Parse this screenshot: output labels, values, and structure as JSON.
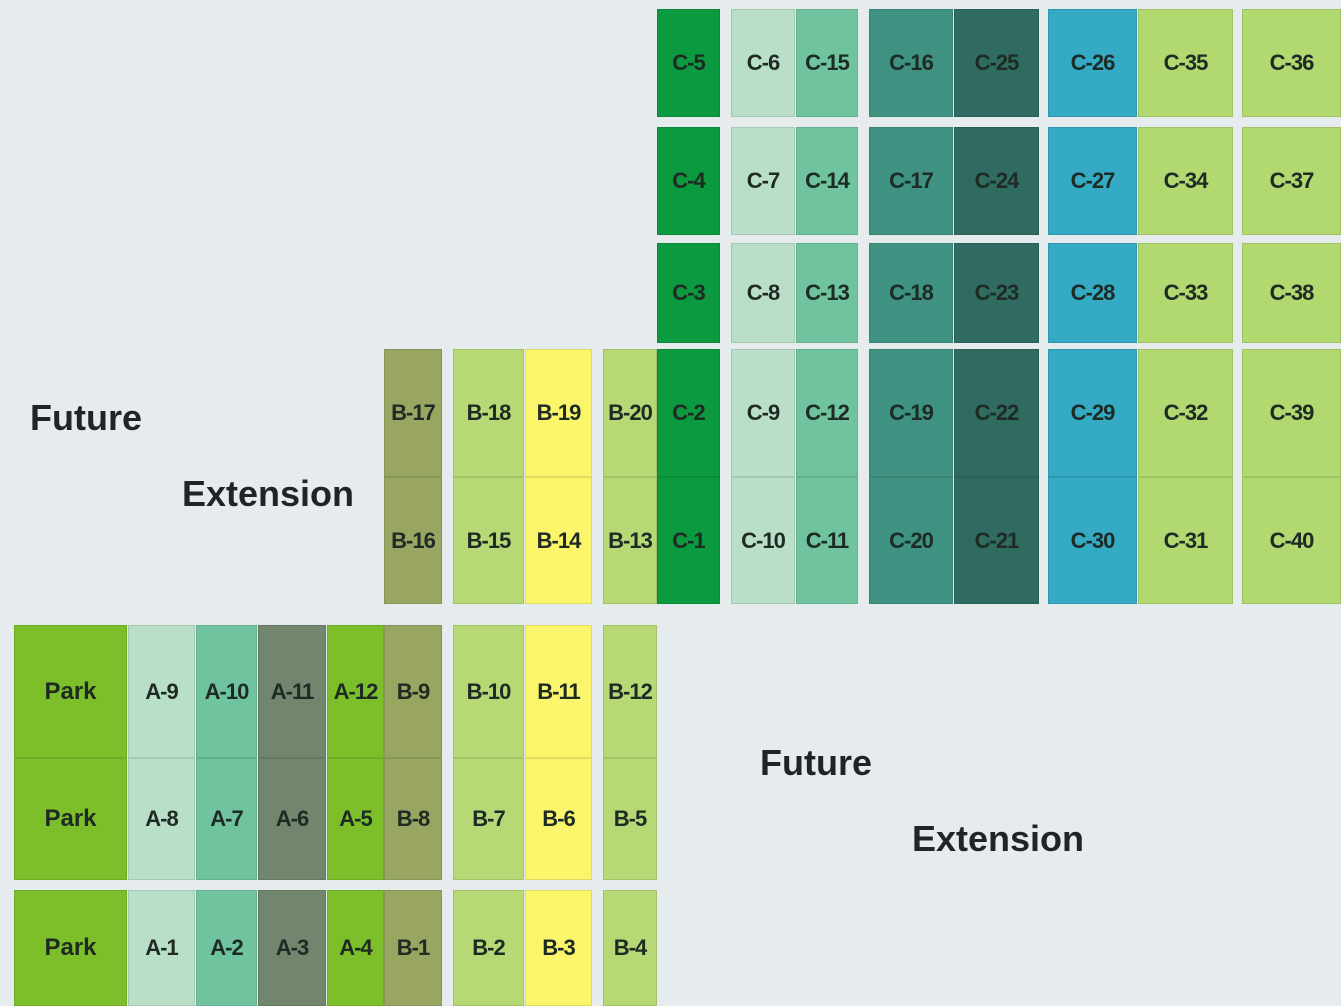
{
  "colors": {
    "background": "#e6ebee",
    "park": "#7cbf2a",
    "light_mint": "#b9dfc8",
    "mint": "#6fc39f",
    "grey_green": "#72856d",
    "bright_green": "#7cbf2a",
    "olive": "#98a662",
    "pale_lime": "#b6d975",
    "yellow": "#fbf56c",
    "deep_green": "#0c9a40",
    "teal": "#3f9282",
    "dark_teal": "#2f6b60",
    "cyan": "#35aac4",
    "lime": "#b2d870"
  },
  "labels": {
    "future_1": "Future",
    "extension_1": "Extension",
    "future_2": "Future",
    "extension_2": "Extension"
  },
  "plots": [
    {
      "label": "Park",
      "color": "park",
      "row": 6,
      "col": "park"
    },
    {
      "label": "Park",
      "color": "park",
      "row": 7,
      "col": "park"
    },
    {
      "label": "Park",
      "color": "park",
      "row": 8,
      "col": "park"
    },
    {
      "label": "A-9",
      "color": "light_mint",
      "row": 6,
      "col": "a1"
    },
    {
      "label": "A-8",
      "color": "light_mint",
      "row": 7,
      "col": "a1"
    },
    {
      "label": "A-1",
      "color": "light_mint",
      "row": 8,
      "col": "a1"
    },
    {
      "label": "A-10",
      "color": "mint",
      "row": 6,
      "col": "a2"
    },
    {
      "label": "A-7",
      "color": "mint",
      "row": 7,
      "col": "a2"
    },
    {
      "label": "A-2",
      "color": "mint",
      "row": 8,
      "col": "a2"
    },
    {
      "label": "A-11",
      "color": "grey_green",
      "row": 6,
      "col": "a3"
    },
    {
      "label": "A-6",
      "color": "grey_green",
      "row": 7,
      "col": "a3"
    },
    {
      "label": "A-3",
      "color": "grey_green",
      "row": 8,
      "col": "a3"
    },
    {
      "label": "A-12",
      "color": "bright_green",
      "row": 6,
      "col": "a4"
    },
    {
      "label": "A-5",
      "color": "bright_green",
      "row": 7,
      "col": "a4"
    },
    {
      "label": "A-4",
      "color": "bright_green",
      "row": 8,
      "col": "a4"
    },
    {
      "label": "B-17",
      "color": "olive",
      "row": 4,
      "col": "b1"
    },
    {
      "label": "B-16",
      "color": "olive",
      "row": 5,
      "col": "b1"
    },
    {
      "label": "B-9",
      "color": "olive",
      "row": 6,
      "col": "b1"
    },
    {
      "label": "B-8",
      "color": "olive",
      "row": 7,
      "col": "b1"
    },
    {
      "label": "B-1",
      "color": "olive",
      "row": 8,
      "col": "b1"
    },
    {
      "label": "B-18",
      "color": "pale_lime",
      "row": 4,
      "col": "b2"
    },
    {
      "label": "B-15",
      "color": "pale_lime",
      "row": 5,
      "col": "b2"
    },
    {
      "label": "B-10",
      "color": "pale_lime",
      "row": 6,
      "col": "b2"
    },
    {
      "label": "B-7",
      "color": "pale_lime",
      "row": 7,
      "col": "b2"
    },
    {
      "label": "B-2",
      "color": "pale_lime",
      "row": 8,
      "col": "b2"
    },
    {
      "label": "B-19",
      "color": "yellow",
      "row": 4,
      "col": "b3"
    },
    {
      "label": "B-14",
      "color": "yellow",
      "row": 5,
      "col": "b3"
    },
    {
      "label": "B-11",
      "color": "yellow",
      "row": 6,
      "col": "b3"
    },
    {
      "label": "B-6",
      "color": "yellow",
      "row": 7,
      "col": "b3"
    },
    {
      "label": "B-3",
      "color": "yellow",
      "row": 8,
      "col": "b3"
    },
    {
      "label": "B-20",
      "color": "pale_lime",
      "row": 4,
      "col": "b4"
    },
    {
      "label": "B-13",
      "color": "pale_lime",
      "row": 5,
      "col": "b4"
    },
    {
      "label": "B-12",
      "color": "pale_lime",
      "row": 6,
      "col": "b4"
    },
    {
      "label": "B-5",
      "color": "pale_lime",
      "row": 7,
      "col": "b4"
    },
    {
      "label": "B-4",
      "color": "pale_lime",
      "row": 8,
      "col": "b4"
    },
    {
      "label": "C-5",
      "color": "deep_green",
      "row": 1,
      "col": "c1"
    },
    {
      "label": "C-4",
      "color": "deep_green",
      "row": 2,
      "col": "c1"
    },
    {
      "label": "C-3",
      "color": "deep_green",
      "row": 3,
      "col": "c1"
    },
    {
      "label": "C-2",
      "color": "deep_green",
      "row": 4,
      "col": "c1"
    },
    {
      "label": "C-1",
      "color": "deep_green",
      "row": 5,
      "col": "c1"
    },
    {
      "label": "C-6",
      "color": "light_mint",
      "row": 1,
      "col": "c2"
    },
    {
      "label": "C-7",
      "color": "light_mint",
      "row": 2,
      "col": "c2"
    },
    {
      "label": "C-8",
      "color": "light_mint",
      "row": 3,
      "col": "c2"
    },
    {
      "label": "C-9",
      "color": "light_mint",
      "row": 4,
      "col": "c2"
    },
    {
      "label": "C-10",
      "color": "light_mint",
      "row": 5,
      "col": "c2"
    },
    {
      "label": "C-15",
      "color": "mint",
      "row": 1,
      "col": "c3"
    },
    {
      "label": "C-14",
      "color": "mint",
      "row": 2,
      "col": "c3"
    },
    {
      "label": "C-13",
      "color": "mint",
      "row": 3,
      "col": "c3"
    },
    {
      "label": "C-12",
      "color": "mint",
      "row": 4,
      "col": "c3"
    },
    {
      "label": "C-11",
      "color": "mint",
      "row": 5,
      "col": "c3"
    },
    {
      "label": "C-16",
      "color": "teal",
      "row": 1,
      "col": "c4"
    },
    {
      "label": "C-17",
      "color": "teal",
      "row": 2,
      "col": "c4"
    },
    {
      "label": "C-18",
      "color": "teal",
      "row": 3,
      "col": "c4"
    },
    {
      "label": "C-19",
      "color": "teal",
      "row": 4,
      "col": "c4"
    },
    {
      "label": "C-20",
      "color": "teal",
      "row": 5,
      "col": "c4"
    },
    {
      "label": "C-25",
      "color": "dark_teal",
      "row": 1,
      "col": "c5"
    },
    {
      "label": "C-24",
      "color": "dark_teal",
      "row": 2,
      "col": "c5"
    },
    {
      "label": "C-23",
      "color": "dark_teal",
      "row": 3,
      "col": "c5"
    },
    {
      "label": "C-22",
      "color": "dark_teal",
      "row": 4,
      "col": "c5"
    },
    {
      "label": "C-21",
      "color": "dark_teal",
      "row": 5,
      "col": "c5"
    },
    {
      "label": "C-26",
      "color": "cyan",
      "row": 1,
      "col": "c6"
    },
    {
      "label": "C-27",
      "color": "cyan",
      "row": 2,
      "col": "c6"
    },
    {
      "label": "C-28",
      "color": "cyan",
      "row": 3,
      "col": "c6"
    },
    {
      "label": "C-29",
      "color": "cyan",
      "row": 4,
      "col": "c6"
    },
    {
      "label": "C-30",
      "color": "cyan",
      "row": 5,
      "col": "c6"
    },
    {
      "label": "C-35",
      "color": "lime",
      "row": 1,
      "col": "c7"
    },
    {
      "label": "C-34",
      "color": "lime",
      "row": 2,
      "col": "c7"
    },
    {
      "label": "C-33",
      "color": "lime",
      "row": 3,
      "col": "c7"
    },
    {
      "label": "C-32",
      "color": "lime",
      "row": 4,
      "col": "c7"
    },
    {
      "label": "C-31",
      "color": "lime",
      "row": 5,
      "col": "c7"
    },
    {
      "label": "C-36",
      "color": "lime",
      "row": 1,
      "col": "c8"
    },
    {
      "label": "C-37",
      "color": "lime",
      "row": 2,
      "col": "c8"
    },
    {
      "label": "C-38",
      "color": "lime",
      "row": 3,
      "col": "c8"
    },
    {
      "label": "C-39",
      "color": "lime",
      "row": 4,
      "col": "c8"
    },
    {
      "label": "C-40",
      "color": "lime",
      "row": 5,
      "col": "c8"
    }
  ]
}
